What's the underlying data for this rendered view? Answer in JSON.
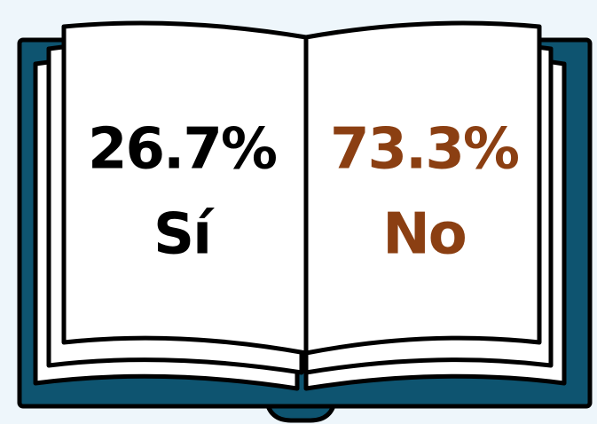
{
  "left": {
    "value": "26.7%",
    "label": "Sí"
  },
  "right": {
    "value": "73.3%",
    "label": "No"
  }
}
